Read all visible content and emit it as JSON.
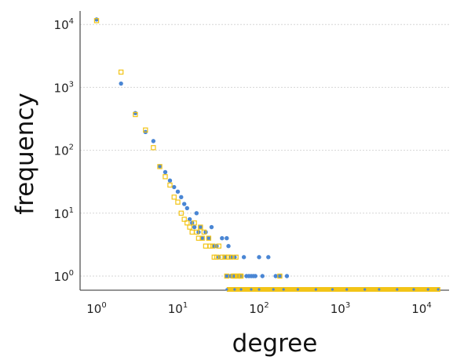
{
  "chart_data": {
    "type": "scatter",
    "title": "",
    "xlabel": "degree",
    "ylabel": "frequency",
    "x_scale": "log",
    "y_scale": "log",
    "xlim": [
      0.5,
      20000
    ],
    "ylim": [
      0.55,
      18000
    ],
    "grid": {
      "x": false,
      "y": true
    },
    "legend": "none",
    "x_ticks": [
      {
        "base": "10",
        "exp": "0",
        "value": 1
      },
      {
        "base": "10",
        "exp": "1",
        "value": 10
      },
      {
        "base": "10",
        "exp": "2",
        "value": 100
      },
      {
        "base": "10",
        "exp": "3",
        "value": 1000
      },
      {
        "base": "10",
        "exp": "4",
        "value": 10000
      }
    ],
    "y_ticks": [
      {
        "base": "10",
        "exp": "0",
        "value": 1
      },
      {
        "base": "10",
        "exp": "1",
        "value": 10
      },
      {
        "base": "10",
        "exp": "2",
        "value": 100
      },
      {
        "base": "10",
        "exp": "3",
        "value": 1000
      },
      {
        "base": "10",
        "exp": "4",
        "value": 10000
      }
    ],
    "series": [
      {
        "marker": "filled-circle",
        "color": "#4a86d4",
        "points": [
          [
            1,
            12000
          ],
          [
            2,
            1150
          ],
          [
            3,
            390
          ],
          [
            4,
            195
          ],
          [
            5,
            140
          ],
          [
            6,
            56
          ],
          [
            7,
            45
          ],
          [
            8,
            33
          ],
          [
            9,
            26
          ],
          [
            10,
            22
          ],
          [
            11,
            18
          ],
          [
            12,
            14
          ],
          [
            13,
            12
          ],
          [
            14,
            8
          ],
          [
            15,
            7
          ],
          [
            16,
            6
          ],
          [
            17,
            10
          ],
          [
            18,
            5
          ],
          [
            19,
            6
          ],
          [
            20,
            4
          ],
          [
            22,
            5
          ],
          [
            24,
            4
          ],
          [
            26,
            6
          ],
          [
            28,
            3
          ],
          [
            30,
            3
          ],
          [
            32,
            2
          ],
          [
            35,
            4
          ],
          [
            38,
            2
          ],
          [
            40,
            4
          ],
          [
            42,
            3
          ],
          [
            45,
            2
          ],
          [
            48,
            1
          ],
          [
            50,
            2
          ],
          [
            55,
            1
          ],
          [
            60,
            1
          ],
          [
            65,
            2
          ],
          [
            70,
            1
          ],
          [
            75,
            1
          ],
          [
            80,
            1
          ],
          [
            85,
            1
          ],
          [
            90,
            1
          ],
          [
            100,
            2
          ],
          [
            110,
            1
          ],
          [
            130,
            2
          ],
          [
            160,
            1
          ],
          [
            180,
            1
          ],
          [
            220,
            1
          ],
          [
            40,
            1
          ],
          [
            42,
            1
          ],
          [
            45,
            1
          ],
          [
            52,
            1
          ]
        ]
      },
      {
        "marker": "open-square",
        "color": "#f2c417",
        "points": [
          [
            1,
            11500
          ],
          [
            2,
            1750
          ],
          [
            3,
            370
          ],
          [
            4,
            210
          ],
          [
            5,
            110
          ],
          [
            6,
            55
          ],
          [
            7,
            38
          ],
          [
            8,
            28
          ],
          [
            9,
            18
          ],
          [
            10,
            15
          ],
          [
            11,
            10
          ],
          [
            12,
            8
          ],
          [
            13,
            7
          ],
          [
            14,
            6
          ],
          [
            15,
            5
          ],
          [
            16,
            7
          ],
          [
            17,
            5
          ],
          [
            18,
            4
          ],
          [
            19,
            6
          ],
          [
            20,
            4
          ],
          [
            21,
            5
          ],
          [
            22,
            3
          ],
          [
            24,
            4
          ],
          [
            25,
            3
          ],
          [
            27,
            3
          ],
          [
            28,
            2
          ],
          [
            30,
            2
          ],
          [
            32,
            3
          ],
          [
            35,
            2
          ],
          [
            38,
            2
          ],
          [
            40,
            1
          ],
          [
            42,
            2
          ],
          [
            45,
            2
          ],
          [
            48,
            1
          ],
          [
            50,
            1
          ],
          [
            52,
            2
          ],
          [
            55,
            1
          ],
          [
            58,
            1
          ],
          [
            60,
            1
          ],
          [
            180,
            1
          ]
        ]
      }
    ],
    "axis_band": {
      "y_value": 0.6,
      "x_from": 40,
      "x_to": 17000,
      "square_color": "#f2c417",
      "dot_color": "#4a86d4",
      "dot_x": [
        40,
        50,
        60,
        80,
        100,
        150,
        200,
        300,
        500,
        800,
        1200,
        2000,
        3000,
        5000,
        8000,
        12000,
        16000
      ]
    }
  }
}
